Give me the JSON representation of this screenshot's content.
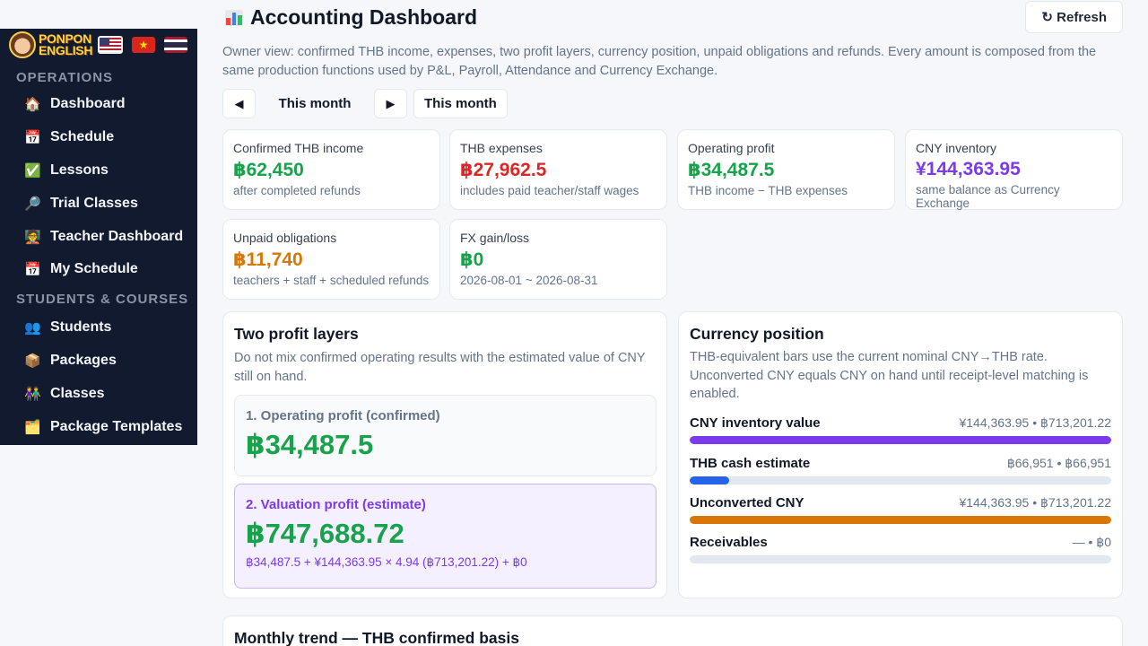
{
  "sidebar": {
    "brand": {
      "line1": "PONPON",
      "line2": "ENGLISH"
    },
    "sections": [
      {
        "title": "OPERATIONS",
        "items": [
          {
            "label": "Dashboard",
            "icon": "home-icon"
          },
          {
            "label": "Schedule",
            "icon": "calendar-icon"
          },
          {
            "label": "Lessons",
            "icon": "checkbox-icon"
          },
          {
            "label": "Trial Classes",
            "icon": "magnifier-icon"
          },
          {
            "label": "Teacher Dashboard",
            "icon": "teacher-icon"
          },
          {
            "label": "My Schedule",
            "icon": "calendar-icon"
          }
        ]
      },
      {
        "title": "STUDENTS & COURSES",
        "items": [
          {
            "label": "Students",
            "icon": "users-icon"
          },
          {
            "label": "Packages",
            "icon": "package-icon"
          },
          {
            "label": "Classes",
            "icon": "group-icon"
          },
          {
            "label": "Package Templates",
            "icon": "folder-icon"
          }
        ]
      }
    ]
  },
  "header": {
    "title": "Accounting Dashboard",
    "refresh_label": "↻ Refresh",
    "description": "Owner view: confirmed THB income, expenses, two profit layers, currency position, unpaid obligations and refunds. Every amount is composed from the same production functions used by P&L, Payroll, Attendance and Currency Exchange."
  },
  "period": {
    "label": "This month",
    "select_label": "This month"
  },
  "stats": [
    {
      "label": "Confirmed THB income",
      "value": "฿62,450",
      "sub": "after completed refunds",
      "color": "#16a34a"
    },
    {
      "label": "THB expenses",
      "value": "฿27,962.5",
      "sub": "includes paid teacher/staff wages",
      "color": "#dc2626"
    },
    {
      "label": "Operating profit",
      "value": "฿34,487.5",
      "sub": "THB income − THB expenses",
      "color": "#16a34a"
    },
    {
      "label": "CNY inventory",
      "value": "¥144,363.95",
      "sub": "same balance as Currency Exchange",
      "color": "#7c3aed"
    },
    {
      "label": "Unpaid obligations",
      "value": "฿11,740",
      "sub": "teachers + staff + scheduled refunds",
      "color": "#d97706"
    },
    {
      "label": "FX gain/loss",
      "value": "฿0",
      "sub": "2026-08-01 ~ 2026-08-31",
      "color": "#16a34a"
    }
  ],
  "profit_layers": {
    "title": "Two profit layers",
    "description": "Do not mix confirmed operating results with the estimated value of CNY still on hand.",
    "operating": {
      "label": "1. Operating profit (confirmed)",
      "value": "฿34,487.5"
    },
    "valuation": {
      "label": "2. Valuation profit (estimate)",
      "value": "฿747,688.72",
      "formula": "฿34,487.5 + ¥144,363.95 × 4.94 (฿713,201.22) + ฿0"
    }
  },
  "currency": {
    "title": "Currency position",
    "description": "THB-equivalent bars use the current nominal CNY→THB rate. Unconverted CNY equals CNY on hand until receipt-level matching is enabled.",
    "rows": [
      {
        "name": "CNY inventory value",
        "values": "¥144,363.95  •  ฿713,201.22",
        "fill": 1.0,
        "color": "#7c3aed"
      },
      {
        "name": "THB cash estimate",
        "values": "฿66,951  •  ฿66,951",
        "fill": 0.094,
        "color": "#2563eb"
      },
      {
        "name": "Unconverted CNY",
        "values": "¥144,363.95  •  ฿713,201.22",
        "fill": 1.0,
        "color": "#d97706"
      },
      {
        "name": "Receivables",
        "values": "—  •  ฿0",
        "fill": 0.0,
        "color": "#16a34a"
      }
    ]
  },
  "trend": {
    "title": "Monthly trend — THB confirmed basis"
  }
}
